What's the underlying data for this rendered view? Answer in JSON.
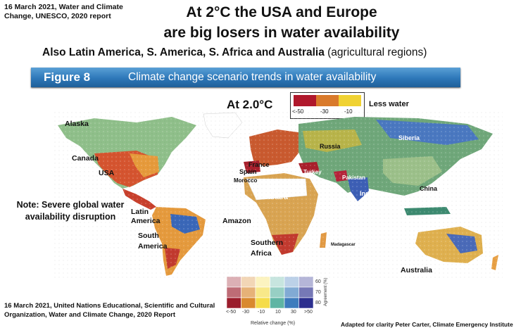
{
  "header": {
    "date_note": "16 March 2021, Water and Climate Change, UNESCO, 2020 report",
    "headline_line1": "At 2°C the USA and Europe",
    "headline_line2": "are big losers in water availability",
    "subheadline_bold": "Also Latin America,  S. America,  S. Africa and Australia",
    "subheadline_normal": " (agricultural regions)"
  },
  "figure": {
    "label": "Figure 8",
    "title": "Climate change scenario trends in water availability",
    "scenario": "At 2.0°C",
    "less_water": "Less water",
    "top_legend": {
      "ticks": [
        "<-50",
        "-30",
        "-10"
      ],
      "colors": [
        "#b0182c",
        "#d97a2b",
        "#f0d232"
      ]
    }
  },
  "regions": {
    "alaska": "Alaska",
    "canada": "Canada",
    "usa": "USA",
    "latin_america": "Latin America",
    "south_america": "South America",
    "amazon": "Amazon",
    "france": "France",
    "spain": "Spain",
    "morocco": "Morocco",
    "sahara": "Sahara",
    "russia": "Russia",
    "turkey": "Turkey",
    "pakistan": "Pakistan",
    "india": "India",
    "china": "China",
    "siberia": "Siberia",
    "southern_africa": "Southern Africa",
    "madagascar": "Madagascar",
    "australia": "Australia"
  },
  "note": "Note: Severe global water availability disruption",
  "agreement_legend": {
    "x_ticks": [
      "<-50",
      "-30",
      "-10",
      "10",
      "30",
      ">50"
    ],
    "y_ticks": [
      "60",
      "70",
      "80"
    ],
    "x_label": "Relative change (%)",
    "y_label": "Agreement (%)",
    "colors": [
      "#9b1d2c",
      "#d9892f",
      "#f5dc4a",
      "#5fb5a4",
      "#3e7cbd",
      "#2c2f8f"
    ]
  },
  "footer": {
    "source": "16 March 2021, United Nations Educational, Scientific and Cultural Organization, Water and Climate Change, 2020 Report",
    "credit": "Adapted for clarity Peter Carter, Climate Emergency Institute"
  }
}
